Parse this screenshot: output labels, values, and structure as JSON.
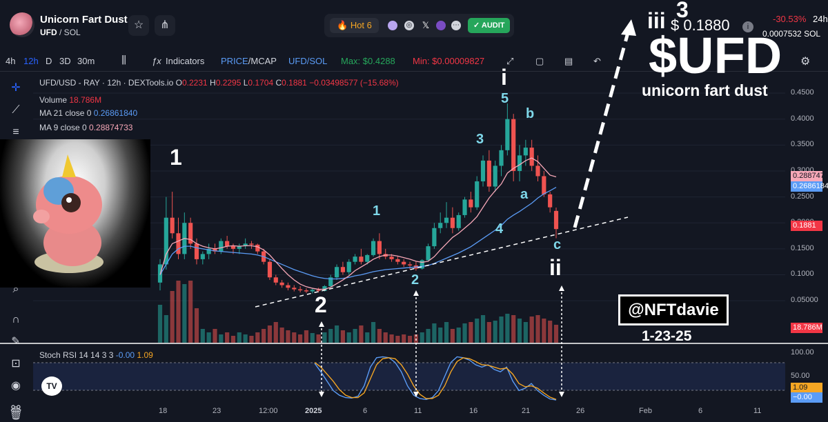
{
  "header": {
    "token_name": "Unicorn Fart Dust",
    "pair_symbol": "UFD",
    "pair_quote": "/ SOL",
    "hot_label": "Hot",
    "hot_rank": "6",
    "audit_label": "AUDIT",
    "price_usd": "$ 0.1880",
    "change_24h": "-30.53%",
    "change_period": "24h",
    "price_sol": "0.0007532",
    "price_sol_unit": "SOL"
  },
  "toolbar": {
    "timeframes": [
      "4h",
      "12h",
      "D",
      "3D",
      "30m"
    ],
    "active_timeframe": "12h",
    "indicators_label": "Indicators",
    "price_label": "PRICE",
    "mcap_label": "MCAP",
    "pair_label": "UFD/SOL",
    "max_label": "Max: $0.4288",
    "min_label": "Min: $0.00009827"
  },
  "legend": {
    "symbol": "UFD/USD - RAY · 12h · DEXTools.io",
    "o_label": "O",
    "o": "0.2231",
    "h_label": "H",
    "h": "0.2295",
    "l_label": "L",
    "l": "0.1704",
    "c_label": "C",
    "c": "0.1881",
    "change": "−0.03498577 (−15.68%)",
    "volume_label": "Volume",
    "volume": "18.786M",
    "ma21_label": "MA 21 close 0",
    "ma21": "0.26861840",
    "ma9_label": "MA 9 close 0",
    "ma9": "0.28874733"
  },
  "rsi": {
    "label": "Stoch RSI 14 14 3 3",
    "k": "-0.00",
    "d": "1.09"
  },
  "price_labels": {
    "ma9": "0.2887473",
    "ma21": "0.2686184",
    "last": "0.1881",
    "volume": "18.786M",
    "rsi_d": "1.09",
    "rsi_k": "−0.00"
  },
  "annotations": {
    "handle": "@NFTdavie",
    "date": "1-23-25",
    "ticker": "$UFD",
    "subtitle": "unicorn fart dust",
    "wave_1_major": "1",
    "wave_2_major": "2",
    "wave_1_minor": "1",
    "wave_2_minor": "2",
    "wave_3_minor": "3",
    "wave_4_minor": "4",
    "wave_5_minor": "5",
    "wave_i": "i",
    "wave_ii": "ii",
    "wave_iii": "iii",
    "wave_3_top": "3",
    "wave_a": "a",
    "wave_b": "b",
    "wave_c": "c"
  },
  "colors": {
    "up": "#26a69a",
    "down": "#ef5350",
    "ma9": "#f7a8b8",
    "ma21": "#5b9cf6",
    "rsi_k": "#5b9cf6",
    "rsi_d": "#f5a623",
    "wave_cyan": "#7fd8ea"
  },
  "chart_data": {
    "type": "candlestick",
    "title": "UFD/USD - RAY · 12h · DEXTools.io",
    "y_axis": {
      "ticks": [
        0.05,
        0.1,
        0.15,
        0.2,
        0.25,
        0.3,
        0.35,
        0.4,
        0.45
      ],
      "tick_labels": [
        "0.05000",
        "0.1000",
        "0.1500",
        "0.2000",
        "0.2500",
        "0.3000",
        "0.3500",
        "0.4000",
        "0.4500"
      ],
      "ylim": [
        0.005,
        0.47
      ]
    },
    "x_axis": {
      "tick_labels": [
        "18",
        "23",
        "12:00",
        "2025",
        "6",
        "11",
        "16",
        "21",
        "26",
        "Feb",
        "6",
        "11"
      ]
    },
    "rsi_ticks": [
      0,
      50,
      100
    ],
    "rsi_tick_labels": [
      "0.00",
      "50.00",
      "100.00"
    ],
    "candles": [
      {
        "o": 0.085,
        "h": 0.13,
        "l": 0.07,
        "c": 0.12
      },
      {
        "o": 0.12,
        "h": 0.25,
        "l": 0.11,
        "c": 0.21
      },
      {
        "o": 0.21,
        "h": 0.26,
        "l": 0.17,
        "c": 0.18
      },
      {
        "o": 0.18,
        "h": 0.21,
        "l": 0.13,
        "c": 0.14
      },
      {
        "o": 0.14,
        "h": 0.22,
        "l": 0.13,
        "c": 0.2
      },
      {
        "o": 0.2,
        "h": 0.21,
        "l": 0.15,
        "c": 0.16
      },
      {
        "o": 0.16,
        "h": 0.17,
        "l": 0.12,
        "c": 0.13
      },
      {
        "o": 0.13,
        "h": 0.145,
        "l": 0.12,
        "c": 0.14
      },
      {
        "o": 0.14,
        "h": 0.16,
        "l": 0.13,
        "c": 0.15
      },
      {
        "o": 0.15,
        "h": 0.16,
        "l": 0.14,
        "c": 0.145
      },
      {
        "o": 0.145,
        "h": 0.17,
        "l": 0.14,
        "c": 0.165
      },
      {
        "o": 0.165,
        "h": 0.175,
        "l": 0.15,
        "c": 0.155
      },
      {
        "o": 0.155,
        "h": 0.16,
        "l": 0.14,
        "c": 0.15
      },
      {
        "o": 0.15,
        "h": 0.16,
        "l": 0.14,
        "c": 0.155
      },
      {
        "o": 0.155,
        "h": 0.17,
        "l": 0.15,
        "c": 0.16
      },
      {
        "o": 0.16,
        "h": 0.165,
        "l": 0.15,
        "c": 0.158
      },
      {
        "o": 0.158,
        "h": 0.16,
        "l": 0.14,
        "c": 0.145
      },
      {
        "o": 0.145,
        "h": 0.15,
        "l": 0.12,
        "c": 0.125
      },
      {
        "o": 0.125,
        "h": 0.13,
        "l": 0.09,
        "c": 0.095
      },
      {
        "o": 0.095,
        "h": 0.1,
        "l": 0.08,
        "c": 0.085
      },
      {
        "o": 0.085,
        "h": 0.09,
        "l": 0.075,
        "c": 0.08
      },
      {
        "o": 0.08,
        "h": 0.085,
        "l": 0.07,
        "c": 0.075
      },
      {
        "o": 0.075,
        "h": 0.08,
        "l": 0.068,
        "c": 0.072
      },
      {
        "o": 0.072,
        "h": 0.078,
        "l": 0.066,
        "c": 0.07
      },
      {
        "o": 0.07,
        "h": 0.074,
        "l": 0.065,
        "c": 0.068
      },
      {
        "o": 0.068,
        "h": 0.073,
        "l": 0.064,
        "c": 0.071
      },
      {
        "o": 0.071,
        "h": 0.075,
        "l": 0.066,
        "c": 0.069
      },
      {
        "o": 0.069,
        "h": 0.08,
        "l": 0.068,
        "c": 0.078
      },
      {
        "o": 0.078,
        "h": 0.1,
        "l": 0.076,
        "c": 0.095
      },
      {
        "o": 0.095,
        "h": 0.12,
        "l": 0.09,
        "c": 0.115
      },
      {
        "o": 0.115,
        "h": 0.125,
        "l": 0.1,
        "c": 0.105
      },
      {
        "o": 0.105,
        "h": 0.13,
        "l": 0.1,
        "c": 0.125
      },
      {
        "o": 0.125,
        "h": 0.14,
        "l": 0.12,
        "c": 0.135
      },
      {
        "o": 0.135,
        "h": 0.15,
        "l": 0.12,
        "c": 0.125
      },
      {
        "o": 0.125,
        "h": 0.14,
        "l": 0.12,
        "c": 0.138
      },
      {
        "o": 0.138,
        "h": 0.17,
        "l": 0.135,
        "c": 0.165
      },
      {
        "o": 0.165,
        "h": 0.18,
        "l": 0.13,
        "c": 0.14
      },
      {
        "o": 0.14,
        "h": 0.15,
        "l": 0.13,
        "c": 0.135
      },
      {
        "o": 0.135,
        "h": 0.14,
        "l": 0.125,
        "c": 0.13
      },
      {
        "o": 0.13,
        "h": 0.135,
        "l": 0.12,
        "c": 0.125
      },
      {
        "o": 0.125,
        "h": 0.13,
        "l": 0.115,
        "c": 0.12
      },
      {
        "o": 0.12,
        "h": 0.125,
        "l": 0.11,
        "c": 0.118
      },
      {
        "o": 0.118,
        "h": 0.125,
        "l": 0.108,
        "c": 0.112
      },
      {
        "o": 0.112,
        "h": 0.13,
        "l": 0.11,
        "c": 0.128
      },
      {
        "o": 0.128,
        "h": 0.16,
        "l": 0.125,
        "c": 0.155
      },
      {
        "o": 0.155,
        "h": 0.2,
        "l": 0.15,
        "c": 0.19
      },
      {
        "o": 0.19,
        "h": 0.22,
        "l": 0.18,
        "c": 0.2
      },
      {
        "o": 0.2,
        "h": 0.24,
        "l": 0.19,
        "c": 0.21
      },
      {
        "o": 0.21,
        "h": 0.23,
        "l": 0.18,
        "c": 0.19
      },
      {
        "o": 0.19,
        "h": 0.22,
        "l": 0.185,
        "c": 0.215
      },
      {
        "o": 0.215,
        "h": 0.25,
        "l": 0.21,
        "c": 0.245
      },
      {
        "o": 0.245,
        "h": 0.26,
        "l": 0.22,
        "c": 0.23
      },
      {
        "o": 0.23,
        "h": 0.29,
        "l": 0.225,
        "c": 0.28
      },
      {
        "o": 0.28,
        "h": 0.33,
        "l": 0.27,
        "c": 0.32
      },
      {
        "o": 0.32,
        "h": 0.34,
        "l": 0.26,
        "c": 0.27
      },
      {
        "o": 0.27,
        "h": 0.32,
        "l": 0.26,
        "c": 0.31
      },
      {
        "o": 0.31,
        "h": 0.35,
        "l": 0.29,
        "c": 0.34
      },
      {
        "o": 0.34,
        "h": 0.43,
        "l": 0.33,
        "c": 0.4
      },
      {
        "o": 0.4,
        "h": 0.41,
        "l": 0.28,
        "c": 0.3
      },
      {
        "o": 0.3,
        "h": 0.35,
        "l": 0.28,
        "c": 0.33
      },
      {
        "o": 0.33,
        "h": 0.36,
        "l": 0.31,
        "c": 0.345
      },
      {
        "o": 0.345,
        "h": 0.36,
        "l": 0.3,
        "c": 0.31
      },
      {
        "o": 0.31,
        "h": 0.33,
        "l": 0.28,
        "c": 0.29
      },
      {
        "o": 0.29,
        "h": 0.3,
        "l": 0.25,
        "c": 0.255
      },
      {
        "o": 0.255,
        "h": 0.26,
        "l": 0.22,
        "c": 0.23
      },
      {
        "o": 0.2231,
        "h": 0.2295,
        "l": 0.1704,
        "c": 0.1881
      }
    ],
    "series": [
      {
        "name": "MA 21 close 0",
        "values": [
          0.1,
          0.12,
          0.14,
          0.15,
          0.155,
          0.155,
          0.152,
          0.15,
          0.148,
          0.146,
          0.145,
          0.144,
          0.143,
          0.142,
          0.141,
          0.14,
          0.138,
          0.135,
          0.13,
          0.125,
          0.12,
          0.115,
          0.11,
          0.106,
          0.102,
          0.098,
          0.095,
          0.093,
          0.092,
          0.092,
          0.093,
          0.095,
          0.098,
          0.1,
          0.103,
          0.106,
          0.108,
          0.11,
          0.111,
          0.112,
          0.113,
          0.114,
          0.115,
          0.116,
          0.118,
          0.122,
          0.127,
          0.132,
          0.137,
          0.142,
          0.148,
          0.154,
          0.162,
          0.17,
          0.178,
          0.186,
          0.195,
          0.207,
          0.215,
          0.222,
          0.23,
          0.238,
          0.248,
          0.256,
          0.262,
          0.2686
        ]
      },
      {
        "name": "MA 9 close 0",
        "values": [
          0.1,
          0.14,
          0.16,
          0.165,
          0.17,
          0.168,
          0.16,
          0.155,
          0.152,
          0.15,
          0.152,
          0.155,
          0.156,
          0.155,
          0.156,
          0.156,
          0.154,
          0.148,
          0.138,
          0.125,
          0.112,
          0.1,
          0.09,
          0.082,
          0.077,
          0.074,
          0.072,
          0.072,
          0.076,
          0.083,
          0.09,
          0.098,
          0.108,
          0.115,
          0.122,
          0.13,
          0.135,
          0.138,
          0.138,
          0.136,
          0.133,
          0.13,
          0.126,
          0.124,
          0.126,
          0.135,
          0.148,
          0.16,
          0.172,
          0.18,
          0.19,
          0.2,
          0.212,
          0.23,
          0.248,
          0.262,
          0.275,
          0.296,
          0.305,
          0.312,
          0.32,
          0.325,
          0.318,
          0.305,
          0.292,
          0.2887
        ]
      }
    ],
    "volume": [
      0.55,
      0.4,
      0.75,
      0.9,
      0.85,
      0.9,
      0.5,
      0.2,
      0.15,
      0.2,
      0.12,
      0.15,
      0.1,
      0.15,
      0.12,
      0.1,
      0.15,
      0.2,
      0.25,
      0.3,
      0.22,
      0.18,
      0.15,
      0.12,
      0.18,
      0.14,
      0.12,
      0.15,
      0.2,
      0.25,
      0.18,
      0.15,
      0.2,
      0.25,
      0.15,
      0.3,
      0.2,
      0.15,
      0.12,
      0.1,
      0.12,
      0.1,
      0.12,
      0.15,
      0.2,
      0.28,
      0.22,
      0.3,
      0.2,
      0.22,
      0.28,
      0.3,
      0.35,
      0.4,
      0.3,
      0.32,
      0.38,
      0.42,
      0.4,
      0.35,
      0.3,
      0.38,
      0.4,
      0.35,
      0.32,
      0.26
    ],
    "stoch_k": [
      78,
      60,
      40,
      20,
      10,
      5,
      4,
      8,
      30,
      70,
      90,
      92,
      90,
      80,
      60,
      30,
      10,
      3,
      1,
      5,
      20,
      50,
      80,
      92,
      90,
      85,
      75,
      70,
      75,
      65,
      60,
      70,
      40,
      20,
      25,
      35,
      20,
      10,
      2,
      0
    ],
    "stoch_d": [
      80,
      70,
      55,
      40,
      22,
      10,
      5,
      5,
      15,
      45,
      75,
      88,
      90,
      88,
      75,
      55,
      30,
      12,
      3,
      3,
      10,
      30,
      60,
      82,
      90,
      88,
      82,
      75,
      74,
      70,
      66,
      68,
      55,
      35,
      28,
      30,
      25,
      15,
      6,
      1.09
    ]
  }
}
